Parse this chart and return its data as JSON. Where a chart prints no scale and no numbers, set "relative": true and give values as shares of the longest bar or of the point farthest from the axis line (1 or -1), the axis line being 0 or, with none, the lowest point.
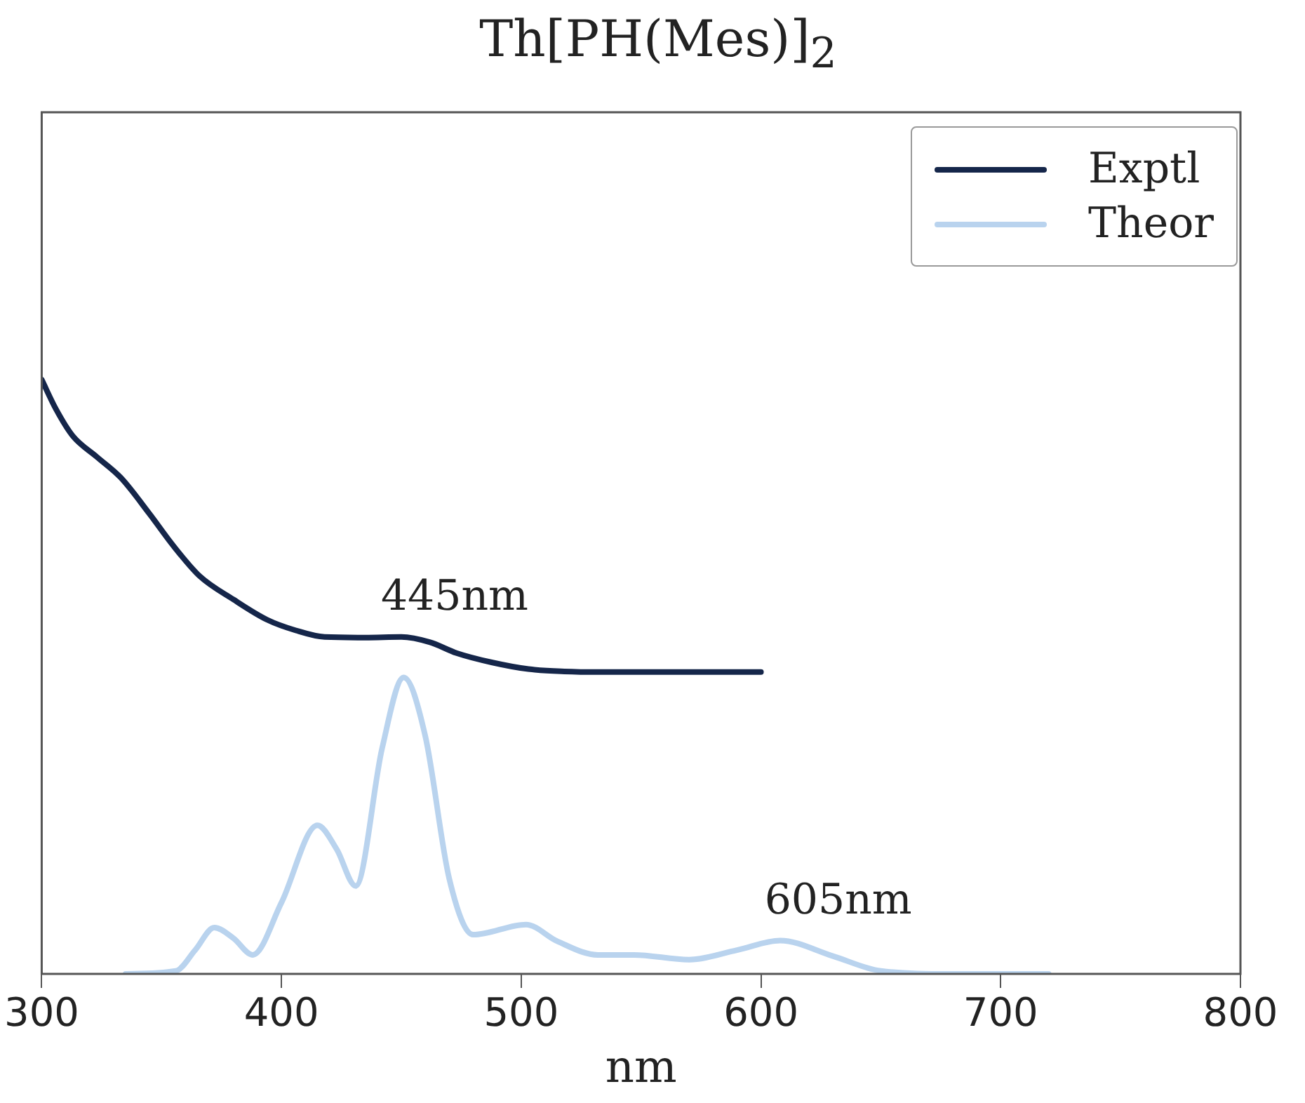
{
  "chart_data": {
    "type": "line",
    "title": "Th[PH(Mes)]$_{2}$",
    "xlabel": "nm",
    "relative": true,
    "xlim": [
      300,
      800
    ],
    "xticks": [
      300,
      400,
      500,
      600,
      700,
      800
    ],
    "legend": "top right",
    "grid": false,
    "marker": "none",
    "line_style": "solid",
    "series": [
      {
        "name": "Exptl",
        "color": "#15264a",
        "x": [
          300,
          306,
          313,
          323,
          333,
          345,
          355,
          366,
          380,
          394,
          406,
          418,
          435,
          450,
          462,
          473,
          488,
          503,
          518,
          533,
          560,
          580,
          600
        ],
        "values": [
          1.0,
          0.95,
          0.905,
          0.87,
          0.835,
          0.774,
          0.72,
          0.669,
          0.63,
          0.596,
          0.578,
          0.567,
          0.566,
          0.567,
          0.558,
          0.54,
          0.524,
          0.513,
          0.509,
          0.508,
          0.508,
          0.508,
          0.508
        ]
      },
      {
        "name": "Theor",
        "color": "#b9d3ee",
        "x": [
          335,
          356,
          364,
          372,
          380,
          388,
          400,
          415,
          423,
          431,
          442,
          451,
          460,
          470,
          480,
          502,
          515,
          532,
          547,
          570,
          590,
          608,
          630,
          650,
          680,
          720
        ],
        "values": [
          0,
          0.005,
          0.04,
          0.078,
          0.06,
          0.032,
          0.12,
          0.25,
          0.21,
          0.148,
          0.38,
          0.499,
          0.4,
          0.16,
          0.066,
          0.083,
          0.055,
          0.032,
          0.032,
          0.024,
          0.04,
          0.056,
          0.03,
          0.005,
          0,
          0
        ]
      }
    ],
    "annotations": [
      {
        "text": "445nm",
        "x": 445,
        "y": 0.567
      },
      {
        "text": "605nm",
        "x": 605,
        "y": 0.056
      }
    ]
  }
}
